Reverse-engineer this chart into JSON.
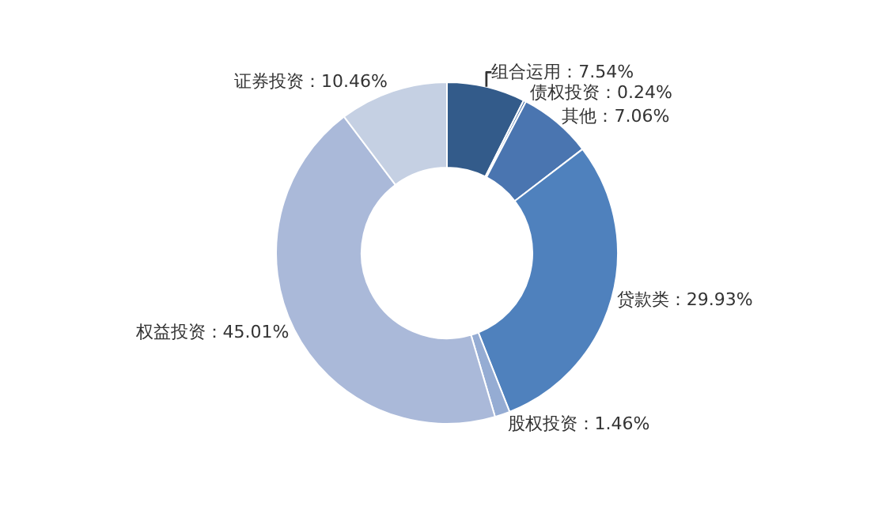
{
  "chart_data": {
    "type": "donut",
    "categories": [
      "组合运用",
      "债权投资",
      "其他",
      "贷款类",
      "股权投资",
      "权益投资",
      "证券投资"
    ],
    "values": [
      7.54,
      0.24,
      7.06,
      29.93,
      1.46,
      45.01,
      10.46
    ],
    "value_labels": [
      "7.54%",
      "0.24%",
      "7.06%",
      "29.93%",
      "1.46%",
      "45.01%",
      "10.46%"
    ],
    "colors": [
      "#335b8a",
      "#3f6aa3",
      "#4a75b0",
      "#4f81bd",
      "#95acd3",
      "#aab9d9",
      "#c5d0e3"
    ],
    "legend": false
  }
}
